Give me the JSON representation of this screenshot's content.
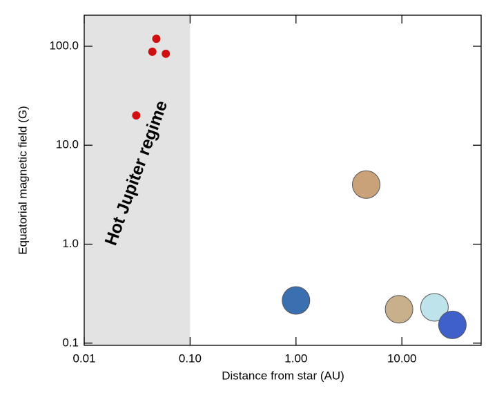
{
  "chart_data": {
    "type": "scatter",
    "x_label": "Distance from star (AU)",
    "y_label": "Equatorial magnetic field (G)",
    "xlog": true,
    "ylog": true,
    "xlim": [
      0.01,
      56
    ],
    "ylim": [
      0.095,
      206
    ],
    "xticks": [
      0.01,
      {
        "value": 0.1,
        "label": "0.10"
      },
      {
        "value": 1,
        "label": "1.00"
      },
      {
        "value": 10,
        "label": "10.00"
      }
    ],
    "yticks": [
      0.1,
      {
        "value": 1,
        "label": "1.0"
      },
      {
        "value": 10,
        "label": "10.0"
      },
      {
        "value": 100,
        "label": "100.0"
      }
    ],
    "shaded_region": {
      "x": [
        0.01,
        0.1
      ],
      "color": "#e3e3e3",
      "label": "Hot Jupiter regime"
    },
    "series": [
      {
        "color": "#d01010",
        "x": [
          0.048,
          0.044,
          0.059,
          0.031
        ],
        "values": [
          119,
          88,
          84,
          20
        ]
      },
      {
        "colors": [
          "#3a6fb0",
          "#c9a27a",
          "#c8b08a",
          "#bfe3ea",
          "#3f60c8"
        ],
        "x": [
          1.0,
          4.6,
          9.4,
          20.3,
          30
        ],
        "values": [
          0.27,
          4.0,
          0.22,
          0.23,
          0.153
        ]
      }
    ]
  }
}
